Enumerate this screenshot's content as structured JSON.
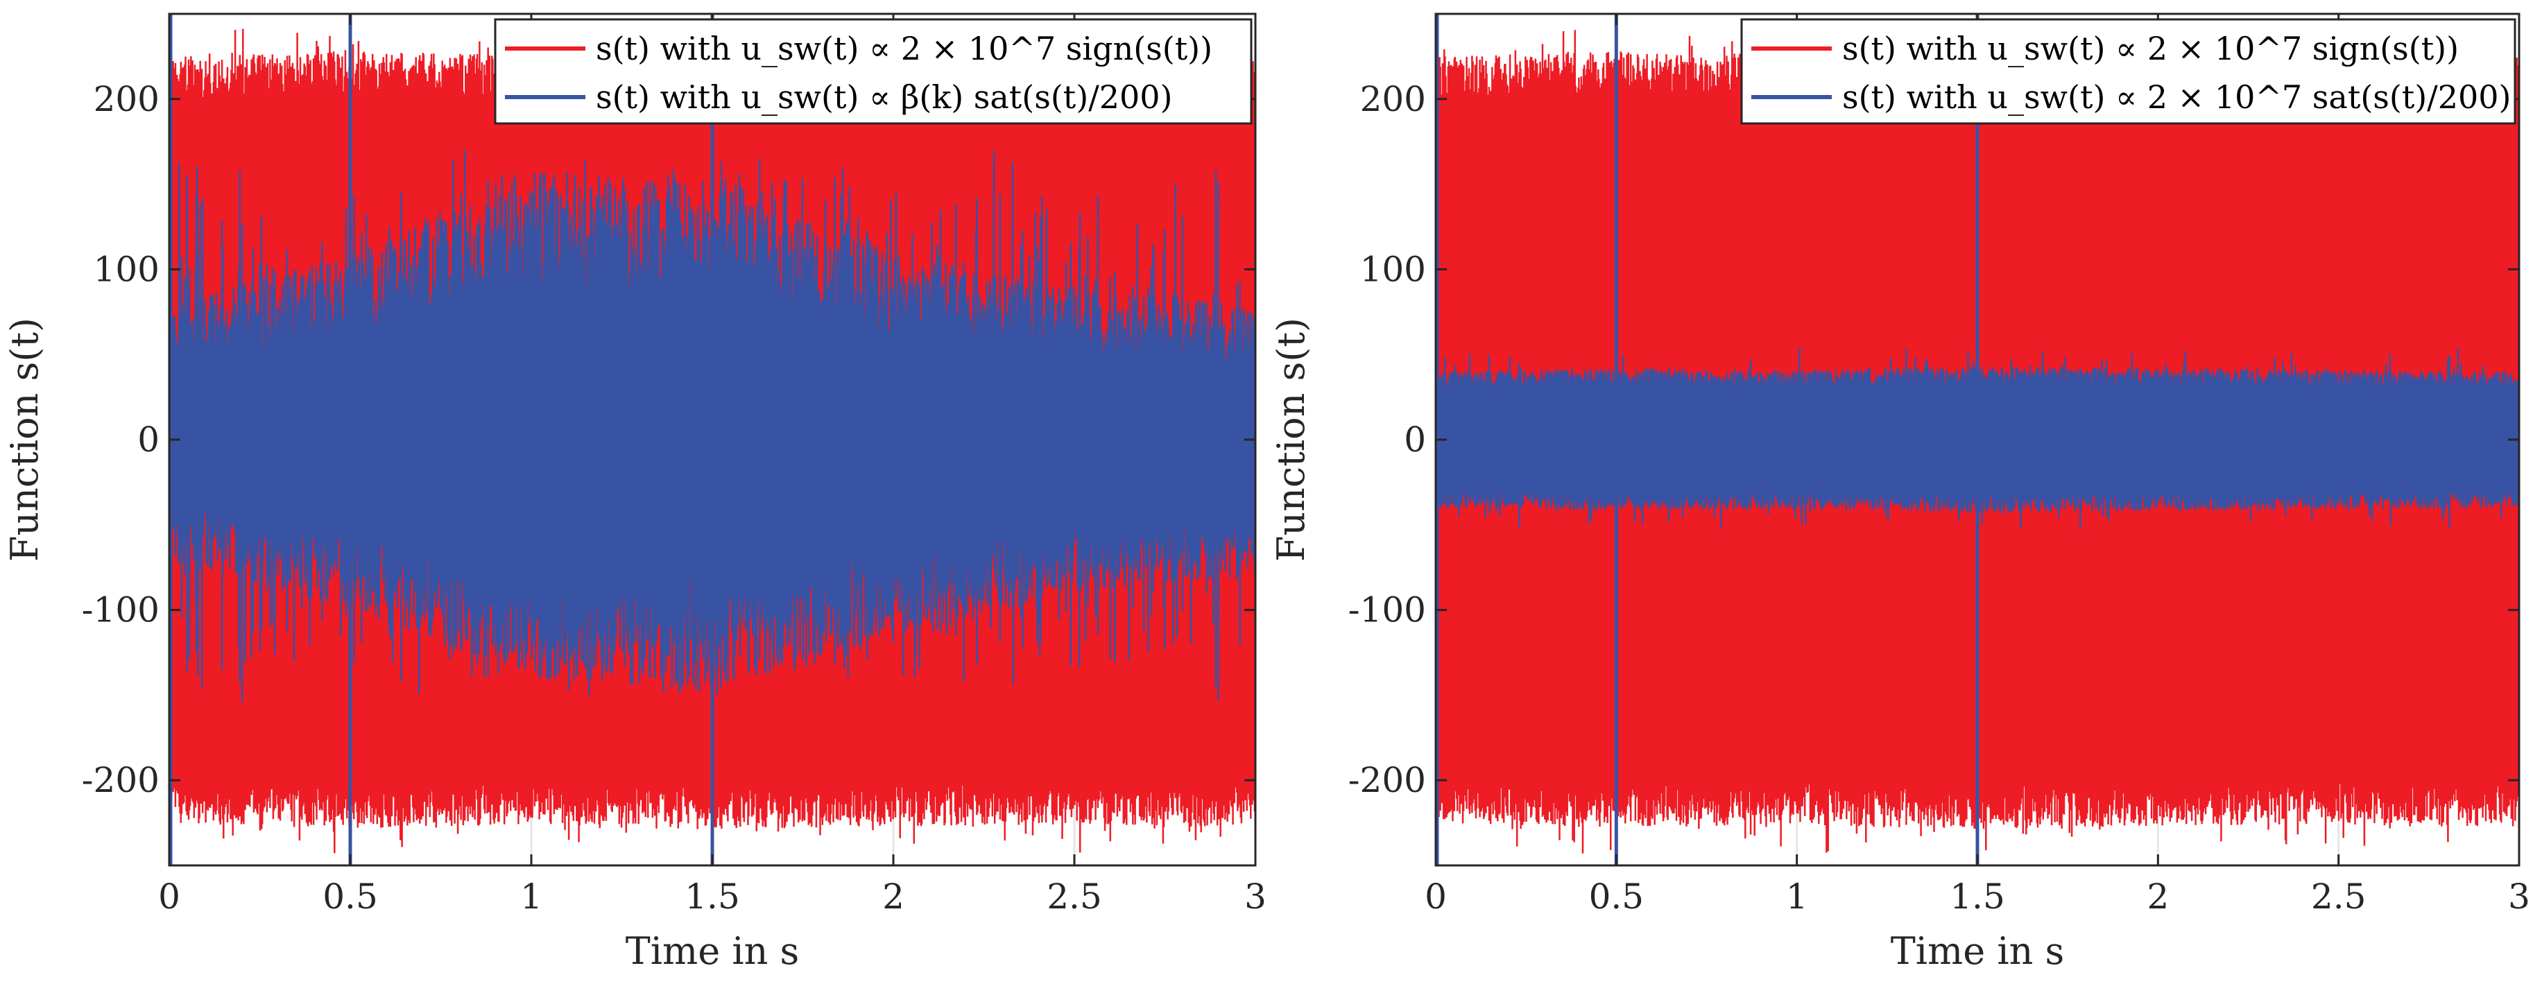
{
  "chart_data": [
    {
      "type": "line",
      "panel": "left",
      "xlabel": "Time in s",
      "ylabel": "Function s(t)",
      "xlim": [
        0,
        3
      ],
      "ylim": [
        -250,
        250
      ],
      "xticks": [
        0,
        0.5,
        1,
        1.5,
        2,
        2.5,
        3
      ],
      "xtick_labels": [
        "0",
        "0.5",
        "1",
        "1.5",
        "2",
        "2.5",
        "3"
      ],
      "yticks": [
        -200,
        -100,
        0,
        100,
        200
      ],
      "ytick_labels": [
        "-200",
        "-100",
        "0",
        "100",
        "200"
      ],
      "grid": true,
      "legend_position": "top-right",
      "legend": [
        {
          "text": "s(t) with u_sw(t) ∝ 2 × 10^7 sign(s(t))",
          "color": "#ee1c25"
        },
        {
          "text": "s(t) with u_sw(t) ∝ β(k) sat(s(t)/200)",
          "color": "#3953a4"
        }
      ],
      "series": [
        {
          "name": "sign",
          "color": "#ee1c25",
          "envelope_min": -230,
          "envelope_max": 230,
          "peak_min": -245,
          "peak_max": 245,
          "x": [
            0,
            0.5,
            1,
            1.5,
            2,
            2.5,
            3
          ],
          "upper": [
            225,
            228,
            226,
            229,
            227,
            226,
            228
          ],
          "lower": [
            -225,
            -228,
            -226,
            -229,
            -227,
            -226,
            -228
          ]
        },
        {
          "name": "sat_beta",
          "color": "#3953a4",
          "envelope_min": -160,
          "envelope_max": 175,
          "x": [
            0,
            0.5,
            1,
            1.5,
            2,
            2.5,
            3
          ],
          "upper": [
            80,
            110,
            160,
            150,
            110,
            90,
            80
          ],
          "lower": [
            -70,
            -100,
            -140,
            -150,
            -120,
            -90,
            -80
          ],
          "spikes_x": [
            0,
            0.5,
            1.5
          ],
          "spikes_range": [
            -250,
            250
          ]
        }
      ]
    },
    {
      "type": "line",
      "panel": "right",
      "xlabel": "Time in s",
      "ylabel": "Function s(t)",
      "xlim": [
        0,
        3
      ],
      "ylim": [
        -250,
        250
      ],
      "xticks": [
        0,
        0.5,
        1,
        1.5,
        2,
        2.5,
        3
      ],
      "xtick_labels": [
        "0",
        "0.5",
        "1",
        "1.5",
        "2",
        "2.5",
        "3"
      ],
      "yticks": [
        -200,
        -100,
        0,
        100,
        200
      ],
      "ytick_labels": [
        "-200",
        "-100",
        "0",
        "100",
        "200"
      ],
      "grid": true,
      "legend_position": "top-right",
      "legend": [
        {
          "text": "s(t) with u_sw(t) ∝ 2 × 10^7 sign(s(t))",
          "color": "#ee1c25"
        },
        {
          "text": "s(t) with u_sw(t) ∝ 2 × 10^7 sat(s(t)/200)",
          "color": "#3953a4"
        }
      ],
      "series": [
        {
          "name": "sign",
          "color": "#ee1c25",
          "envelope_min": -230,
          "envelope_max": 230,
          "peak_min": -245,
          "peak_max": 245,
          "x": [
            0,
            0.5,
            1,
            1.5,
            2,
            2.5,
            3
          ],
          "upper": [
            225,
            228,
            226,
            229,
            227,
            226,
            228
          ],
          "lower": [
            -225,
            -228,
            -226,
            -229,
            -227,
            -226,
            -228
          ]
        },
        {
          "name": "sat_const",
          "color": "#3953a4",
          "envelope_min": -55,
          "envelope_max": 55,
          "x": [
            0,
            0.5,
            1,
            1.5,
            2,
            2.5,
            3
          ],
          "upper": [
            40,
            42,
            41,
            43,
            42,
            41,
            40
          ],
          "lower": [
            -40,
            -42,
            -41,
            -43,
            -42,
            -41,
            -40
          ],
          "spikes_x": [
            0,
            0.5,
            1.5
          ],
          "spikes_range": [
            -250,
            250
          ]
        }
      ]
    }
  ]
}
